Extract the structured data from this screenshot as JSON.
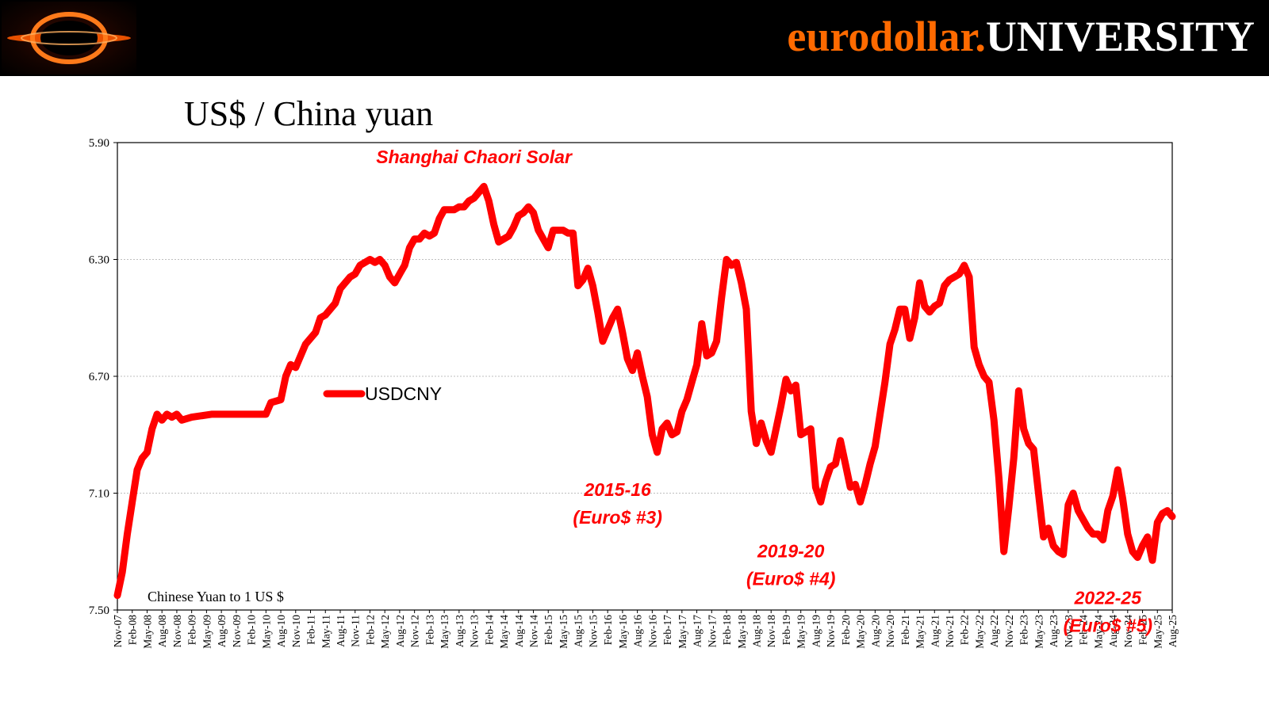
{
  "header": {
    "brand_part1": "eurodollar.",
    "brand_part2": "UNIVERSITY",
    "logo_icon": "black-hole-icon"
  },
  "colors": {
    "banner": "#000000",
    "brand_orange": "#ff6a00",
    "series": "#ff0000",
    "annotation": "#ff0000"
  },
  "chart_data": {
    "type": "line",
    "title": "US$ / China yuan",
    "note": "Chinese Yuan to 1 US $",
    "y_inverted": true,
    "ylim": [
      5.9,
      7.5
    ],
    "y_ticks": [
      "5.90",
      "6.30",
      "6.70",
      "7.10",
      "7.50"
    ],
    "grid": true,
    "legend": {
      "position": "center-left",
      "label": "USDCNY"
    },
    "x_tick_labels": [
      "Nov-07",
      "Feb-08",
      "May-08",
      "Aug-08",
      "Nov-08",
      "Feb-09",
      "May-09",
      "Aug-09",
      "Nov-09",
      "Feb-10",
      "May-10",
      "Aug-10",
      "Nov-10",
      "Feb-11",
      "May-11",
      "Aug-11",
      "Nov-11",
      "Feb-12",
      "May-12",
      "Aug-12",
      "Nov-12",
      "Feb-13",
      "May-13",
      "Aug-13",
      "Nov-13",
      "Feb-14",
      "May-14",
      "Aug-14",
      "Nov-14",
      "Feb-15",
      "May-15",
      "Aug-15",
      "Nov-15",
      "Feb-16",
      "May-16",
      "Aug-16",
      "Nov-16",
      "Feb-17",
      "May-17",
      "Aug-17",
      "Nov-17",
      "Feb-18",
      "May-18",
      "Aug-18",
      "Nov-18",
      "Feb-19",
      "May-19",
      "Aug-19",
      "Nov-19",
      "Feb-20",
      "May-20",
      "Aug-20",
      "Nov-20",
      "Feb-21",
      "May-21",
      "Aug-21",
      "Nov-21",
      "Feb-22",
      "May-22",
      "Aug-22",
      "Nov-22",
      "Feb-23",
      "May-23",
      "Aug-23",
      "Nov-23",
      "Feb-24",
      "May-24",
      "Aug-24",
      "Nov-24",
      "Feb-25",
      "May-25",
      "Aug-25"
    ],
    "series": [
      {
        "name": "USDCNY",
        "color": "#ff0000",
        "points": [
          [
            "Nov-07",
            7.45
          ],
          [
            "Dec-07",
            7.37
          ],
          [
            "Jan-08",
            7.24
          ],
          [
            "Feb-08",
            7.13
          ],
          [
            "Mar-08",
            7.02
          ],
          [
            "Apr-08",
            6.98
          ],
          [
            "May-08",
            6.96
          ],
          [
            "Jun-08",
            6.88
          ],
          [
            "Jul-08",
            6.83
          ],
          [
            "Aug-08",
            6.85
          ],
          [
            "Sep-08",
            6.83
          ],
          [
            "Oct-08",
            6.84
          ],
          [
            "Nov-08",
            6.83
          ],
          [
            "Dec-08",
            6.85
          ],
          [
            "Feb-09",
            6.84
          ],
          [
            "Jun-09",
            6.83
          ],
          [
            "Dec-09",
            6.83
          ],
          [
            "May-10",
            6.83
          ],
          [
            "Jun-10",
            6.79
          ],
          [
            "Aug-10",
            6.78
          ],
          [
            "Sep-10",
            6.7
          ],
          [
            "Oct-10",
            6.66
          ],
          [
            "Nov-10",
            6.67
          ],
          [
            "Dec-10",
            6.63
          ],
          [
            "Jan-11",
            6.59
          ],
          [
            "Feb-11",
            6.57
          ],
          [
            "Mar-11",
            6.55
          ],
          [
            "Apr-11",
            6.5
          ],
          [
            "May-11",
            6.49
          ],
          [
            "Jun-11",
            6.47
          ],
          [
            "Jul-11",
            6.45
          ],
          [
            "Aug-11",
            6.4
          ],
          [
            "Sep-11",
            6.38
          ],
          [
            "Oct-11",
            6.36
          ],
          [
            "Nov-11",
            6.35
          ],
          [
            "Dec-11",
            6.32
          ],
          [
            "Jan-12",
            6.31
          ],
          [
            "Feb-12",
            6.3
          ],
          [
            "Mar-12",
            6.31
          ],
          [
            "Apr-12",
            6.3
          ],
          [
            "May-12",
            6.32
          ],
          [
            "Jun-12",
            6.36
          ],
          [
            "Jul-12",
            6.38
          ],
          [
            "Aug-12",
            6.35
          ],
          [
            "Sep-12",
            6.32
          ],
          [
            "Oct-12",
            6.26
          ],
          [
            "Nov-12",
            6.23
          ],
          [
            "Dec-12",
            6.23
          ],
          [
            "Jan-13",
            6.21
          ],
          [
            "Feb-13",
            6.22
          ],
          [
            "Mar-13",
            6.21
          ],
          [
            "Apr-13",
            6.16
          ],
          [
            "May-13",
            6.13
          ],
          [
            "Jun-13",
            6.13
          ],
          [
            "Jul-13",
            6.13
          ],
          [
            "Aug-13",
            6.12
          ],
          [
            "Sep-13",
            6.12
          ],
          [
            "Oct-13",
            6.1
          ],
          [
            "Nov-13",
            6.09
          ],
          [
            "Dec-13",
            6.07
          ],
          [
            "Jan-14",
            6.05
          ],
          [
            "Feb-14",
            6.1
          ],
          [
            "Mar-14",
            6.18
          ],
          [
            "Apr-14",
            6.24
          ],
          [
            "May-14",
            6.23
          ],
          [
            "Jun-14",
            6.22
          ],
          [
            "Jul-14",
            6.19
          ],
          [
            "Aug-14",
            6.15
          ],
          [
            "Sep-14",
            6.14
          ],
          [
            "Oct-14",
            6.12
          ],
          [
            "Nov-14",
            6.14
          ],
          [
            "Dec-14",
            6.2
          ],
          [
            "Jan-15",
            6.23
          ],
          [
            "Feb-15",
            6.26
          ],
          [
            "Mar-15",
            6.2
          ],
          [
            "Apr-15",
            6.2
          ],
          [
            "May-15",
            6.2
          ],
          [
            "Jun-15",
            6.21
          ],
          [
            "Jul-15",
            6.21
          ],
          [
            "Aug-15",
            6.39
          ],
          [
            "Sep-15",
            6.37
          ],
          [
            "Oct-15",
            6.33
          ],
          [
            "Nov-15",
            6.39
          ],
          [
            "Dec-15",
            6.48
          ],
          [
            "Jan-16",
            6.58
          ],
          [
            "Feb-16",
            6.54
          ],
          [
            "Mar-16",
            6.5
          ],
          [
            "Apr-16",
            6.47
          ],
          [
            "May-16",
            6.55
          ],
          [
            "Jun-16",
            6.64
          ],
          [
            "Jul-16",
            6.68
          ],
          [
            "Aug-16",
            6.62
          ],
          [
            "Sep-16",
            6.7
          ],
          [
            "Oct-16",
            6.77
          ],
          [
            "Nov-16",
            6.9
          ],
          [
            "Dec-16",
            6.96
          ],
          [
            "Jan-17",
            6.88
          ],
          [
            "Feb-17",
            6.86
          ],
          [
            "Mar-17",
            6.9
          ],
          [
            "Apr-17",
            6.89
          ],
          [
            "May-17",
            6.82
          ],
          [
            "Jun-17",
            6.78
          ],
          [
            "Jul-17",
            6.72
          ],
          [
            "Aug-17",
            6.66
          ],
          [
            "Sep-17",
            6.52
          ],
          [
            "Oct-17",
            6.63
          ],
          [
            "Nov-17",
            6.62
          ],
          [
            "Dec-17",
            6.58
          ],
          [
            "Jan-18",
            6.43
          ],
          [
            "Feb-18",
            6.3
          ],
          [
            "Mar-18",
            6.32
          ],
          [
            "Apr-18",
            6.31
          ],
          [
            "May-18",
            6.38
          ],
          [
            "Jun-18",
            6.47
          ],
          [
            "Jul-18",
            6.82
          ],
          [
            "Aug-18",
            6.93
          ],
          [
            "Sep-18",
            6.86
          ],
          [
            "Oct-18",
            6.92
          ],
          [
            "Nov-18",
            6.96
          ],
          [
            "Dec-18",
            6.88
          ],
          [
            "Jan-19",
            6.8
          ],
          [
            "Feb-19",
            6.71
          ],
          [
            "Mar-19",
            6.75
          ],
          [
            "Apr-19",
            6.73
          ],
          [
            "May-19",
            6.9
          ],
          [
            "Jun-19",
            6.89
          ],
          [
            "Jul-19",
            6.88
          ],
          [
            "Aug-19",
            7.08
          ],
          [
            "Sep-19",
            7.13
          ],
          [
            "Oct-19",
            7.06
          ],
          [
            "Nov-19",
            7.01
          ],
          [
            "Dec-19",
            7.0
          ],
          [
            "Jan-20",
            6.92
          ],
          [
            "Feb-20",
            7.0
          ],
          [
            "Mar-20",
            7.08
          ],
          [
            "Apr-20",
            7.07
          ],
          [
            "May-20",
            7.13
          ],
          [
            "Jun-20",
            7.07
          ],
          [
            "Jul-20",
            7.0
          ],
          [
            "Aug-20",
            6.94
          ],
          [
            "Sep-20",
            6.83
          ],
          [
            "Oct-20",
            6.72
          ],
          [
            "Nov-20",
            6.59
          ],
          [
            "Dec-20",
            6.54
          ],
          [
            "Jan-21",
            6.47
          ],
          [
            "Feb-21",
            6.47
          ],
          [
            "Mar-21",
            6.57
          ],
          [
            "Apr-21",
            6.5
          ],
          [
            "May-21",
            6.38
          ],
          [
            "Jun-21",
            6.46
          ],
          [
            "Jul-21",
            6.48
          ],
          [
            "Aug-21",
            6.46
          ],
          [
            "Sep-21",
            6.45
          ],
          [
            "Oct-21",
            6.39
          ],
          [
            "Nov-21",
            6.37
          ],
          [
            "Dec-21",
            6.36
          ],
          [
            "Jan-22",
            6.35
          ],
          [
            "Feb-22",
            6.32
          ],
          [
            "Mar-22",
            6.36
          ],
          [
            "Apr-22",
            6.6
          ],
          [
            "May-22",
            6.66
          ],
          [
            "Jun-22",
            6.7
          ],
          [
            "Jul-22",
            6.72
          ],
          [
            "Aug-22",
            6.85
          ],
          [
            "Sep-22",
            7.05
          ],
          [
            "Oct-22",
            7.3
          ],
          [
            "Nov-22",
            7.15
          ],
          [
            "Dec-22",
            6.98
          ],
          [
            "Jan-23",
            6.75
          ],
          [
            "Feb-23",
            6.88
          ],
          [
            "Mar-23",
            6.93
          ],
          [
            "Apr-23",
            6.95
          ],
          [
            "May-23",
            7.1
          ],
          [
            "Jun-23",
            7.25
          ],
          [
            "Jul-23",
            7.22
          ],
          [
            "Aug-23",
            7.28
          ],
          [
            "Sep-23",
            7.3
          ],
          [
            "Oct-23",
            7.31
          ],
          [
            "Nov-23",
            7.14
          ],
          [
            "Dec-23",
            7.1
          ],
          [
            "Jan-24",
            7.16
          ],
          [
            "Feb-24",
            7.19
          ],
          [
            "Mar-24",
            7.22
          ],
          [
            "Apr-24",
            7.24
          ],
          [
            "May-24",
            7.24
          ],
          [
            "Jun-24",
            7.26
          ],
          [
            "Jul-24",
            7.16
          ],
          [
            "Aug-24",
            7.11
          ],
          [
            "Sep-24",
            7.02
          ],
          [
            "Oct-24",
            7.12
          ],
          [
            "Nov-24",
            7.24
          ],
          [
            "Dec-24",
            7.3
          ],
          [
            "Jan-25",
            7.32
          ],
          [
            "Feb-25",
            7.28
          ],
          [
            "Mar-25",
            7.25
          ],
          [
            "Apr-25",
            7.33
          ],
          [
            "May-25",
            7.2
          ],
          [
            "Jun-25",
            7.17
          ],
          [
            "Jul-25",
            7.16
          ],
          [
            "Aug-25",
            7.18
          ]
        ]
      }
    ],
    "annotations": [
      {
        "lines": [
          "Shanghai Chaori Solar"
        ],
        "x": "Nov-13",
        "y": 5.97
      },
      {
        "lines": [
          "2015-16",
          "(Euro$ #3)"
        ],
        "x": "Apr-16",
        "y": 7.11
      },
      {
        "lines": [
          "2019-20",
          "(Euro$ #4)"
        ],
        "x": "Mar-19",
        "y": 7.32
      },
      {
        "lines": [
          "2022-25",
          "(Euro$ #5)"
        ],
        "x": "Jul-24",
        "y": 7.48
      }
    ]
  }
}
